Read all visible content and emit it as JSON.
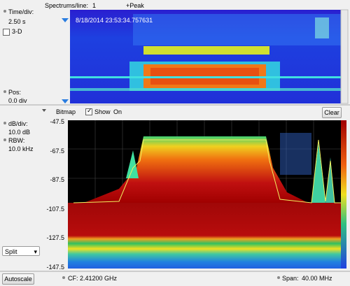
{
  "top_bar": {
    "spectrums_label": "Spectrums/line:",
    "spectrums_value": "1",
    "detector": "+Peak"
  },
  "spectrogram": {
    "time_div_label": "Time/div:",
    "time_div_value": "2.50 s",
    "three_d": "3-D",
    "pos_label": "Pos:",
    "pos_value": "0.0 div",
    "timestamp": "8/18/2014 23:53:34.757631"
  },
  "toolbar": {
    "bitmap": "Bitmap",
    "show": "Show",
    "on": "On",
    "clear": "Clear"
  },
  "spectrum": {
    "db_div_label": "dB/div:",
    "db_div_value": "10.0 dB",
    "rbw_label": "RBW:",
    "rbw_value": "10.0 kHz",
    "y_labels": [
      "-47.5",
      "-67.5",
      "-87.5",
      "-107.5",
      "-127.5",
      "-147.5"
    ],
    "split": "Split"
  },
  "bottom_bar": {
    "autoscale": "Autoscale",
    "cf_label": "CF:",
    "cf_value": "2.41200 GHz",
    "span_label": "Span:",
    "span_value": "40.00 MHz"
  }
}
